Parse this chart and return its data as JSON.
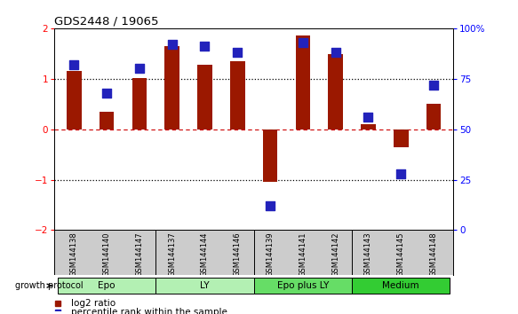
{
  "title": "GDS2448 / 19065",
  "samples": [
    "GSM144138",
    "GSM144140",
    "GSM144147",
    "GSM144137",
    "GSM144144",
    "GSM144146",
    "GSM144139",
    "GSM144141",
    "GSM144142",
    "GSM144143",
    "GSM144145",
    "GSM144148"
  ],
  "log2_ratio": [
    1.15,
    0.35,
    1.02,
    1.65,
    1.28,
    1.35,
    -1.05,
    1.85,
    1.48,
    0.1,
    -0.35,
    0.5
  ],
  "percentile_rank": [
    82,
    68,
    80,
    92,
    91,
    88,
    12,
    93,
    88,
    56,
    28,
    72
  ],
  "group_configs": [
    [
      0,
      3,
      "Epo",
      "#b3f0b3"
    ],
    [
      3,
      6,
      "LY",
      "#b3f0b3"
    ],
    [
      6,
      9,
      "Epo plus LY",
      "#66dd66"
    ],
    [
      9,
      12,
      "Medium",
      "#33cc33"
    ]
  ],
  "bar_color": "#9b1800",
  "dot_color": "#2222bb",
  "ylim_left": [
    -2,
    2
  ],
  "ylim_right": [
    0,
    100
  ],
  "yticks_left": [
    -2,
    -1,
    0,
    1,
    2
  ],
  "yticks_right": [
    0,
    25,
    50,
    75,
    100
  ],
  "ytick_labels_right": [
    "0",
    "25",
    "50",
    "75",
    "100%"
  ],
  "group_protocol_label": "growth protocol",
  "legend_log2": "log2 ratio",
  "legend_pct": "percentile rank within the sample",
  "background_color": "#ffffff",
  "label_bg_color": "#cccccc",
  "bar_width": 0.45,
  "dot_size": 45
}
